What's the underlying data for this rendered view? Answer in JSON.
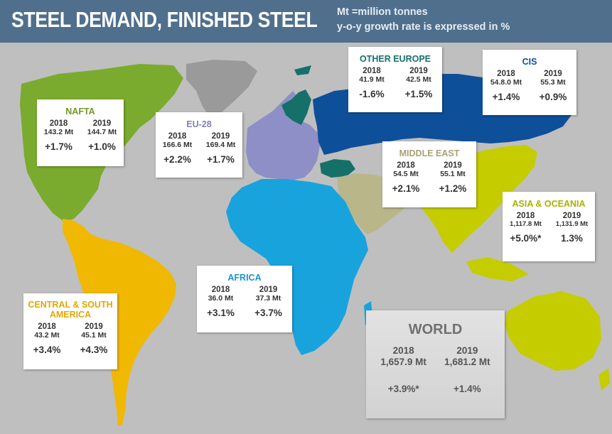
{
  "header": {
    "title": "STEEL DEMAND, FINISHED STEEL",
    "subtitle_line1": "Mt =million tonnes",
    "subtitle_line2": "y-o-y growth rate is expressed in %"
  },
  "colors": {
    "header_bg": "#4f6f8d",
    "background": "#bfbfbf",
    "nafta": "#7aab2e",
    "central_south_america": "#f0b800",
    "eu28": "#8d8fc6",
    "other_europe": "#15706a",
    "cis": "#0e4f9a",
    "middle_east": "#b9b68a",
    "africa": "#19a3dc",
    "asia_oceania": "#c5cd00",
    "unassigned_land": "#9a9a9a"
  },
  "regions": {
    "nafta": {
      "name": "NAFTA",
      "name_color": "#6e9a24",
      "year1": "2018",
      "year2": "2019",
      "mt1": "143.2 Mt",
      "mt2": "144.7 Mt",
      "gr1": "+1.7%",
      "gr2": "+1.0%"
    },
    "eu28": {
      "name": "EU-28",
      "name_color": "#7f81b8",
      "year1": "2018",
      "year2": "2019",
      "mt1": "166.6 Mt",
      "mt2": "169.4 Mt",
      "gr1": "+2.2%",
      "gr2": "+1.7%"
    },
    "other_europe": {
      "name": "OTHER EUROPE",
      "name_color": "#15706a",
      "year1": "2018",
      "year2": "2019",
      "mt1": "41.9 Mt",
      "mt2": "42.5 Mt",
      "gr1": "-1.6%",
      "gr2": "+1.5%"
    },
    "cis": {
      "name": "CIS",
      "name_color": "#0e4f9a",
      "year1": "2018",
      "year2": "2019",
      "mt1": "54.8.0 Mt",
      "mt2": "55.3 Mt",
      "gr1": "+1.4%",
      "gr2": "+0.9%"
    },
    "middle_east": {
      "name": "MIDDLE EAST",
      "name_color": "#a6a278",
      "year1": "2018",
      "year2": "2019",
      "mt1": "54.5 Mt",
      "mt2": "55.1 Mt",
      "gr1": "+2.1%",
      "gr2": "+1.2%"
    },
    "asia_oceania": {
      "name": "ASIA & OCEANIA",
      "name_color": "#a9b000",
      "year1": "2018",
      "year2": "2019",
      "mt1": "1,117.8 Mt",
      "mt2": "1,131.9 Mt",
      "gr1": "+5.0%*",
      "gr2": "1.3%"
    },
    "africa": {
      "name": "AFRICA",
      "name_color": "#1796c9",
      "year1": "2018",
      "year2": "2019",
      "mt1": "36.0 Mt",
      "mt2": "37.3 Mt",
      "gr1": "+3.1%",
      "gr2": "+3.7%"
    },
    "central_south_america": {
      "name_line1": "CENTRAL & SOUTH",
      "name_line2": "AMERICA",
      "name_color": "#e0a800",
      "year1": "2018",
      "year2": "2019",
      "mt1": "43.2 Mt",
      "mt2": "45.1 Mt",
      "gr1": "+3.4%",
      "gr2": "+4.3%"
    }
  },
  "world": {
    "name": "WORLD",
    "year1": "2018",
    "year2": "2019",
    "mt1": "1,657.9 Mt",
    "mt2": "1,681.2 Mt",
    "gr1": "+3.9%*",
    "gr2": "+1.4%"
  }
}
